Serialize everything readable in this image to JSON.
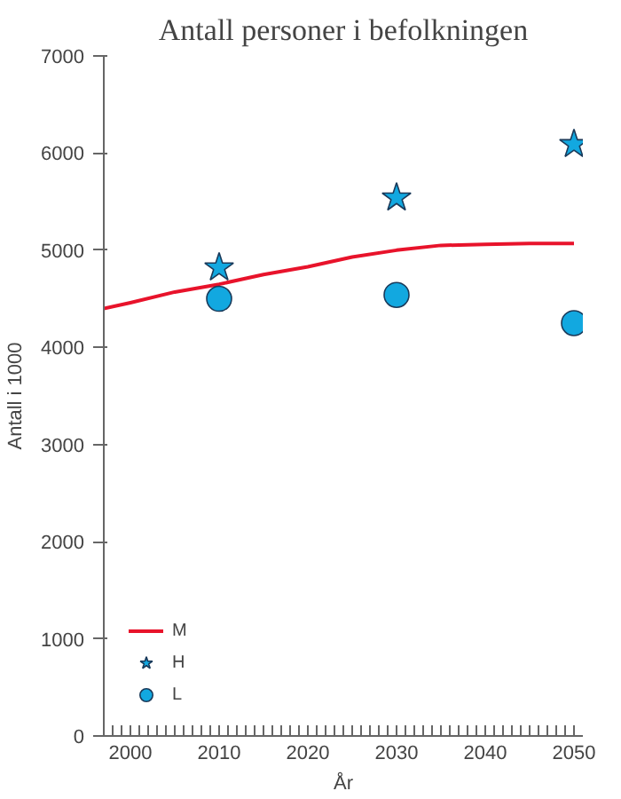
{
  "chart_data": {
    "type": "line",
    "title": "Antall personer i befolkningen",
    "xlabel": "År",
    "ylabel": "Antall i 1000",
    "xlim": [
      1997,
      2051
    ],
    "ylim": [
      0,
      7000
    ],
    "yticks": [
      0,
      1000,
      2000,
      3000,
      4000,
      5000,
      6000,
      7000
    ],
    "xticks": [
      {
        "value": 1997,
        "label": null
      },
      {
        "value": 1998,
        "label": null
      },
      {
        "value": 1999,
        "label": null
      },
      2000,
      {
        "value": 2001,
        "label": null
      },
      {
        "value": 2002,
        "label": null
      },
      {
        "value": 2003,
        "label": null
      },
      {
        "value": 2004,
        "label": null
      },
      {
        "value": 2005,
        "label": null
      },
      {
        "value": 2006,
        "label": null
      },
      {
        "value": 2007,
        "label": null
      },
      {
        "value": 2008,
        "label": null
      },
      {
        "value": 2009,
        "label": null
      },
      2010,
      {
        "value": 2011,
        "label": null
      },
      {
        "value": 2012,
        "label": null
      },
      {
        "value": 2013,
        "label": null
      },
      {
        "value": 2014,
        "label": null
      },
      {
        "value": 2015,
        "label": null
      },
      {
        "value": 2016,
        "label": null
      },
      {
        "value": 2017,
        "label": null
      },
      {
        "value": 2018,
        "label": null
      },
      {
        "value": 2019,
        "label": null
      },
      2020,
      {
        "value": 2021,
        "label": null
      },
      {
        "value": 2022,
        "label": null
      },
      {
        "value": 2023,
        "label": null
      },
      {
        "value": 2024,
        "label": null
      },
      {
        "value": 2025,
        "label": null
      },
      {
        "value": 2026,
        "label": null
      },
      {
        "value": 2027,
        "label": null
      },
      {
        "value": 2028,
        "label": null
      },
      {
        "value": 2029,
        "label": null
      },
      2030,
      {
        "value": 2031,
        "label": null
      },
      {
        "value": 2032,
        "label": null
      },
      {
        "value": 2033,
        "label": null
      },
      {
        "value": 2034,
        "label": null
      },
      {
        "value": 2035,
        "label": null
      },
      {
        "value": 2036,
        "label": null
      },
      {
        "value": 2037,
        "label": null
      },
      {
        "value": 2038,
        "label": null
      },
      {
        "value": 2039,
        "label": null
      },
      2040,
      {
        "value": 2041,
        "label": null
      },
      {
        "value": 2042,
        "label": null
      },
      {
        "value": 2043,
        "label": null
      },
      {
        "value": 2044,
        "label": null
      },
      {
        "value": 2045,
        "label": null
      },
      {
        "value": 2046,
        "label": null
      },
      {
        "value": 2047,
        "label": null
      },
      {
        "value": 2048,
        "label": null
      },
      {
        "value": 2049,
        "label": null
      },
      2050
    ],
    "grid": false,
    "legend": "bottom left",
    "series": [
      {
        "name": "M",
        "color": "#e8132b",
        "marker": "none",
        "x": [
          1997,
          2000,
          2005,
          2010,
          2015,
          2020,
          2025,
          2030,
          2035,
          2040,
          2045,
          2050
        ],
        "values": [
          4400,
          4460,
          4570,
          4650,
          4750,
          4830,
          4930,
          5000,
          5050,
          5060,
          5070,
          5070
        ]
      },
      {
        "name": "H",
        "type": "scatter",
        "color": "#12a8e0",
        "marker": "star",
        "x": [
          2010,
          2030,
          2050
        ],
        "values": [
          4820,
          5540,
          6090
        ]
      },
      {
        "name": "L",
        "type": "scatter",
        "color": "#12a8e0",
        "marker": "circle",
        "x": [
          2010,
          2030,
          2050
        ],
        "values": [
          4500,
          4540,
          4250
        ]
      }
    ]
  }
}
